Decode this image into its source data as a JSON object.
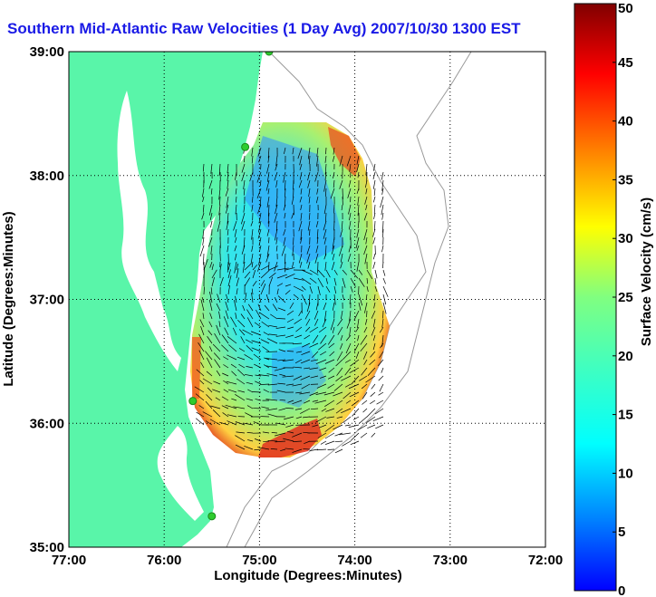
{
  "title": "Southern Mid-Atlantic Raw Velocities (1 Day Avg) 2007/10/30 1300 EST",
  "map": {
    "xlabel": "Longitude (Degrees:Minutes)",
    "ylabel": "Latitude (Degrees:Minutes)",
    "x_ticks": [
      "77:00",
      "76:00",
      "75:00",
      "74:00",
      "73:00",
      "72:00"
    ],
    "y_ticks": [
      "39:00",
      "38:00",
      "37:00",
      "36:00",
      "35:00"
    ],
    "x_range": [
      -77,
      -72
    ],
    "y_range": [
      35,
      39
    ],
    "grid": "dotted",
    "land_color": "#59f5a9",
    "site_marker_color": "#2ecc2e"
  },
  "colorbar": {
    "label": "Surface Velocity (cm/s)",
    "ticks": [
      "0",
      "5",
      "10",
      "15",
      "20",
      "25",
      "30",
      "35",
      "40",
      "45",
      "50"
    ],
    "range": [
      0,
      50
    ],
    "colormap": "jet"
  },
  "chart_data": {
    "type": "heatmap",
    "title": "Southern Mid-Atlantic Raw Velocities (1 Day Avg) 2007/10/30 1300 EST",
    "xlabel": "Longitude (Degrees:Minutes)",
    "ylabel": "Latitude (Degrees:Minutes)",
    "value_label": "Surface Velocity (cm/s)",
    "xlim": [
      -77,
      -72
    ],
    "ylim": [
      35,
      39
    ],
    "clim": [
      0,
      50
    ],
    "description_of_field": "HF radar surface current velocity vectors with speed shading",
    "site_markers": [
      {
        "lon": -74.9,
        "lat": 39.0
      },
      {
        "lon": -75.15,
        "lat": 38.23
      },
      {
        "lon": -75.7,
        "lat": 36.18
      },
      {
        "lon": -75.5,
        "lat": 35.25
      }
    ]
  }
}
